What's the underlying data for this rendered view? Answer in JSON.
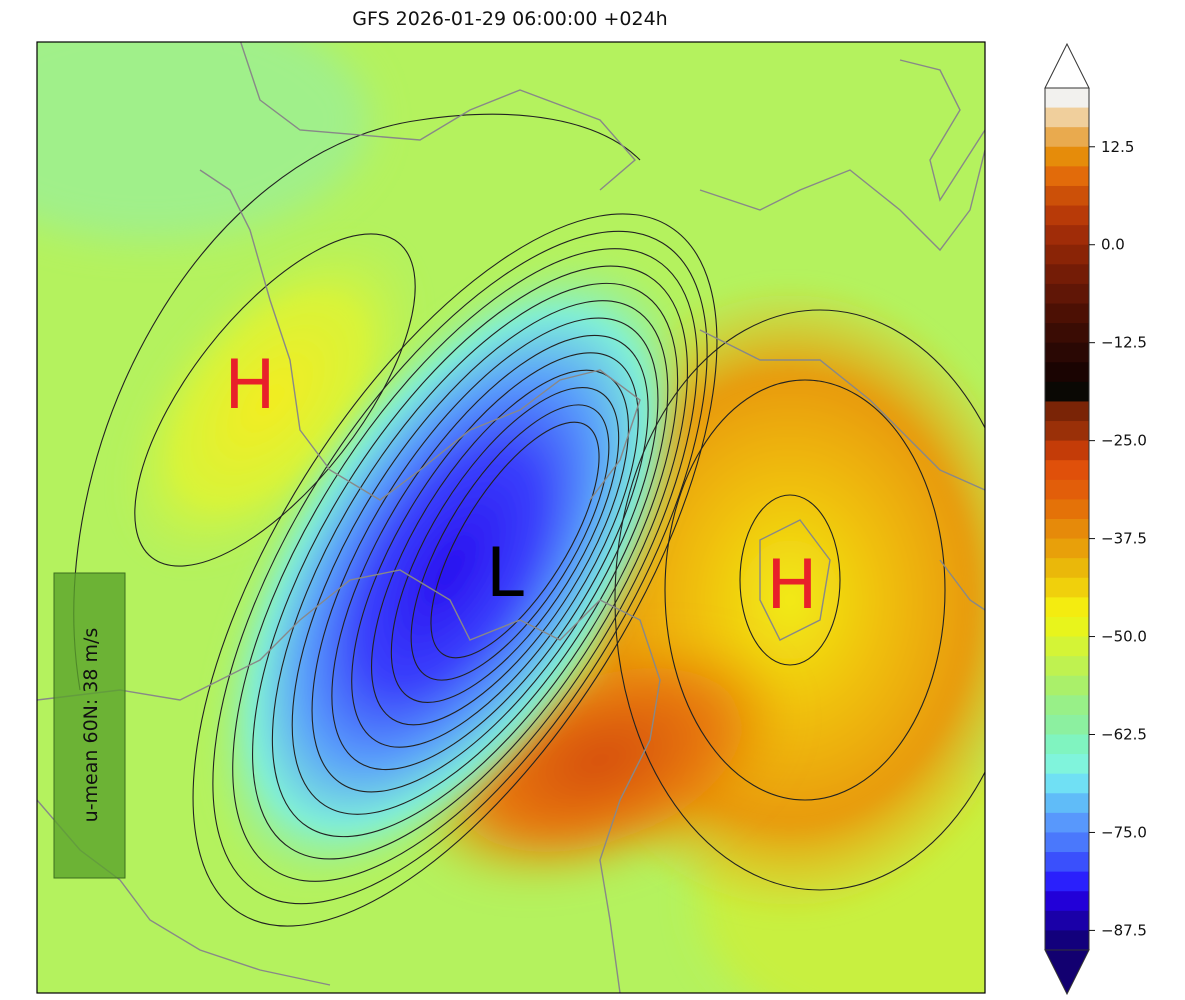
{
  "title": "GFS 2026-01-29 06:00:00 +024h",
  "annotation_box": {
    "text": "u-mean 60N: 38 m/s",
    "color": "#5aa22a"
  },
  "pressure_labels": [
    {
      "label": "H",
      "color": "#e8202a"
    },
    {
      "label": "L",
      "color": "#000000"
    },
    {
      "label": "H",
      "color": "#e8202a"
    }
  ],
  "colorbar": {
    "min": -90,
    "max": 20,
    "step": 2.5,
    "extend": "both",
    "ticks": [
      12.5,
      0.0,
      -12.5,
      -25.0,
      -37.5,
      -50.0,
      -62.5,
      -75.0,
      -87.5
    ],
    "tick_labels": [
      "12.5",
      "0.0",
      "−12.5",
      "−25.0",
      "−37.5",
      "−50.0",
      "−62.5",
      "−75.0",
      "−87.5"
    ],
    "over_color": "#ffffff",
    "under_color": "#120070",
    "colors_top_to_bottom": [
      "#f2f1ee",
      "#f0cf9c",
      "#e9aa4e",
      "#e68c0a",
      "#e26b0a",
      "#cc5008",
      "#b83a08",
      "#a02c08",
      "#8a2406",
      "#741c06",
      "#601606",
      "#4c1004",
      "#3a0c04",
      "#2a0804",
      "#1a0402",
      "#0a0804",
      "#7a2406",
      "#9a3008",
      "#c43c08",
      "#e0500a",
      "#e25e0a",
      "#e47208",
      "#e68a0a",
      "#e8a00a",
      "#eab80a",
      "#f0d00c",
      "#f4ec10",
      "#e8f41c",
      "#d4f436",
      "#bff250",
      "#aaf06a",
      "#98f088",
      "#8cf0a0",
      "#80f4c0",
      "#80f4dc",
      "#70e0f4",
      "#60bcf8",
      "#5898fc",
      "#4a78fc",
      "#3a50fc",
      "#2a20fc",
      "#2200d8",
      "#1a00a8",
      "#12007c"
    ]
  }
}
